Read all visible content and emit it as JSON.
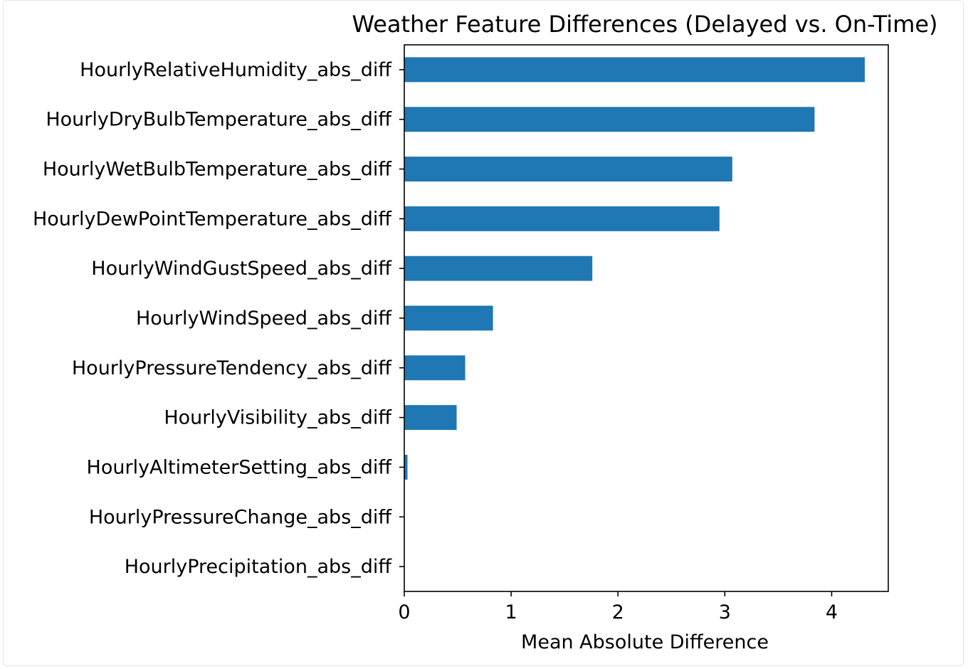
{
  "chart_data": {
    "type": "bar",
    "orientation": "horizontal",
    "title": "Weather Feature Differences (Delayed vs. On-Time)",
    "xlabel": "Mean Absolute Difference",
    "ylabel": "",
    "xlim": [
      0,
      4.53
    ],
    "x_ticks": [
      "0",
      "1",
      "2",
      "3",
      "4"
    ],
    "categories": [
      "HourlyRelativeHumidity_abs_diff",
      "HourlyDryBulbTemperature_abs_diff",
      "HourlyWetBulbTemperature_abs_diff",
      "HourlyDewPointTemperature_abs_diff",
      "HourlyWindGustSpeed_abs_diff",
      "HourlyWindSpeed_abs_diff",
      "HourlyPressureTendency_abs_diff",
      "HourlyVisibility_abs_diff",
      "HourlyAltimeterSetting_abs_diff",
      "HourlyPressureChange_abs_diff",
      "HourlyPrecipitation_abs_diff"
    ],
    "values": [
      4.31,
      3.84,
      3.07,
      2.95,
      1.76,
      0.83,
      0.57,
      0.49,
      0.03,
      0.0,
      0.0
    ],
    "bar_color": "#1f77b4",
    "grid": false,
    "legend": "none"
  }
}
